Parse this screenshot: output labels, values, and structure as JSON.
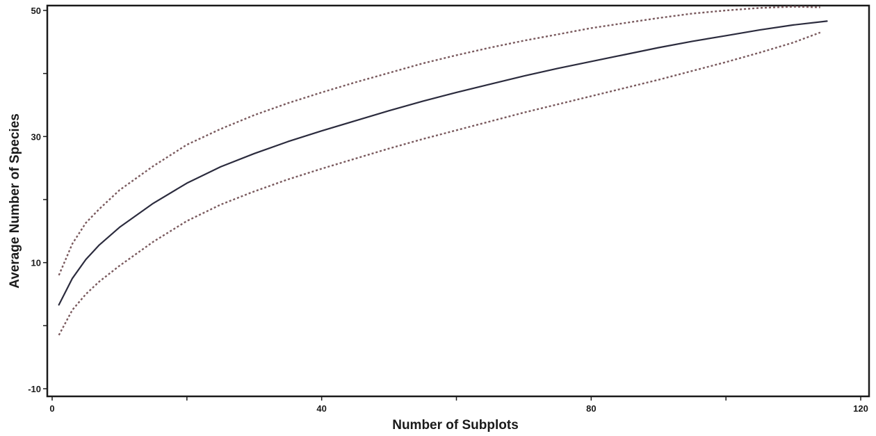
{
  "chart_data": {
    "type": "line",
    "title": "",
    "xlabel": "Number of Subplots",
    "ylabel": "Average Number of Species",
    "xlim": [
      0,
      120
    ],
    "ylim": [
      -10,
      50
    ],
    "xticks": [
      0,
      40,
      80,
      120
    ],
    "yticks": [
      -10,
      10,
      30,
      50
    ],
    "grid": false,
    "legend": "none",
    "colors": {
      "mean": "#2b2b3d",
      "bounds": "#7a5a5e",
      "axis": "#1a1a1a"
    },
    "series": [
      {
        "style": "solid",
        "x": [
          1,
          3,
          5,
          7,
          10,
          15,
          20,
          25,
          30,
          35,
          40,
          45,
          50,
          55,
          60,
          65,
          70,
          75,
          80,
          85,
          90,
          95,
          100,
          105,
          110,
          115
        ],
        "y": [
          3.3,
          7.5,
          10.5,
          12.8,
          15.6,
          19.4,
          22.6,
          25.2,
          27.3,
          29.2,
          30.9,
          32.5,
          34.1,
          35.6,
          37.0,
          38.3,
          39.6,
          40.8,
          41.9,
          43.0,
          44.1,
          45.1,
          46.0,
          46.9,
          47.7,
          48.3
        ]
      },
      {
        "style": "dotted",
        "x": [
          1,
          3,
          5,
          7,
          10,
          15,
          20,
          25,
          30,
          35,
          40,
          45,
          50,
          55,
          60,
          65,
          70,
          75,
          80,
          85,
          90,
          95,
          100,
          105,
          110,
          114
        ],
        "y": [
          8.0,
          13.0,
          16.3,
          18.5,
          21.5,
          25.3,
          28.7,
          31.2,
          33.4,
          35.3,
          37.0,
          38.6,
          40.1,
          41.6,
          42.9,
          44.1,
          45.2,
          46.2,
          47.2,
          48.0,
          48.8,
          49.5,
          50.0,
          50.4,
          50.6,
          50.5
        ]
      },
      {
        "style": "dotted",
        "x": [
          1,
          3,
          5,
          7,
          10,
          15,
          20,
          25,
          30,
          35,
          40,
          45,
          50,
          55,
          60,
          65,
          70,
          75,
          80,
          85,
          90,
          95,
          100,
          105,
          110,
          114
        ],
        "y": [
          -1.5,
          2.5,
          5.0,
          7.0,
          9.5,
          13.3,
          16.6,
          19.2,
          21.3,
          23.2,
          24.9,
          26.5,
          28.1,
          29.6,
          31.0,
          32.4,
          33.8,
          35.1,
          36.4,
          37.7,
          39.0,
          40.4,
          41.8,
          43.3,
          44.9,
          46.5
        ]
      }
    ]
  }
}
